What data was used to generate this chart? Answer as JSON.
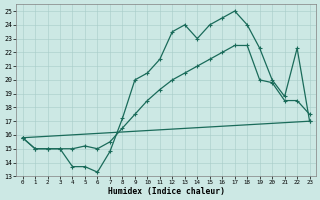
{
  "xlabel": "Humidex (Indice chaleur)",
  "xlim": [
    -0.5,
    23.5
  ],
  "ylim": [
    13,
    25.5
  ],
  "yticks": [
    13,
    14,
    15,
    16,
    17,
    18,
    19,
    20,
    21,
    22,
    23,
    24,
    25
  ],
  "xticks": [
    0,
    1,
    2,
    3,
    4,
    5,
    6,
    7,
    8,
    9,
    10,
    11,
    12,
    13,
    14,
    15,
    16,
    17,
    18,
    19,
    20,
    21,
    22,
    23
  ],
  "background_color": "#cce8e4",
  "grid_color": "#a8ccc8",
  "line_color": "#1a6b5a",
  "line1_x": [
    0,
    1,
    2,
    3,
    4,
    5,
    6,
    7,
    8,
    9,
    10,
    11,
    12,
    13,
    14,
    15,
    16,
    17,
    18,
    19,
    20,
    21,
    22,
    23
  ],
  "line1_y": [
    15.8,
    15.0,
    15.0,
    15.0,
    13.7,
    13.7,
    13.3,
    14.8,
    17.2,
    20.0,
    20.5,
    21.5,
    23.5,
    24.0,
    23.0,
    24.0,
    24.5,
    25.0,
    24.0,
    22.3,
    20.0,
    18.8,
    22.3,
    17.0
  ],
  "line2_x": [
    0,
    1,
    2,
    3,
    4,
    5,
    6,
    7,
    8,
    9,
    10,
    11,
    12,
    13,
    14,
    15,
    16,
    17,
    18,
    19,
    20,
    21,
    22,
    23
  ],
  "line2_y": [
    15.8,
    15.0,
    15.0,
    15.0,
    15.0,
    15.2,
    15.0,
    15.5,
    16.5,
    17.5,
    18.5,
    19.3,
    20.0,
    20.5,
    21.0,
    21.5,
    22.0,
    22.5,
    22.5,
    20.0,
    19.8,
    18.5,
    18.5,
    17.5
  ],
  "line3_x": [
    0,
    23
  ],
  "line3_y": [
    15.8,
    17.0
  ],
  "marker_size": 2.2,
  "marker_style": "+",
  "line_width": 0.9
}
